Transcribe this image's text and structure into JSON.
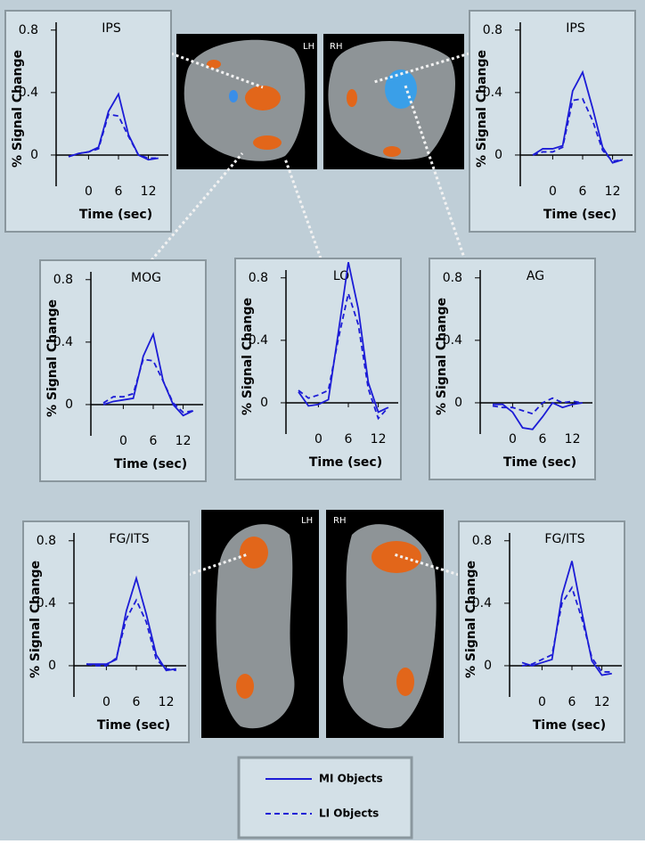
{
  "chart_data": [
    {
      "type": "line",
      "title": "IPS",
      "x_label": "Time (sec)",
      "y_label": "% Signal Change",
      "x": [
        -4,
        -2,
        0,
        2,
        4,
        6,
        8,
        10,
        12,
        14
      ],
      "xlim": [
        -6.5,
        16
      ],
      "xticks": [
        0,
        6,
        12
      ],
      "ylim": [
        -0.2,
        0.85
      ],
      "yticks": [
        0,
        0.4,
        0.8
      ],
      "series": [
        {
          "name": "MI Objects",
          "color": "#1c1cd6",
          "line_style": "solid",
          "values": [
            -0.01,
            0.01,
            0.02,
            0.05,
            0.28,
            0.39,
            0.13,
            0.0,
            -0.03,
            -0.02
          ]
        },
        {
          "name": "LI Objects",
          "color": "#1c1cd6",
          "line_style": "dashed",
          "values": [
            -0.01,
            0.01,
            0.02,
            0.04,
            0.26,
            0.25,
            0.12,
            0.0,
            -0.02,
            -0.02
          ]
        }
      ]
    },
    {
      "type": "line",
      "title": "IPS",
      "x_label": "Time (sec)",
      "y_label": "% Signal Change",
      "x": [
        -4,
        -2,
        0,
        2,
        4,
        6,
        8,
        10,
        12,
        14
      ],
      "xlim": [
        -6.5,
        16
      ],
      "xticks": [
        0,
        6,
        12
      ],
      "ylim": [
        -0.2,
        0.85
      ],
      "yticks": [
        0,
        0.4,
        0.8
      ],
      "series": [
        {
          "name": "MI Objects",
          "color": "#1c1cd6",
          "line_style": "solid",
          "values": [
            0.0,
            0.04,
            0.04,
            0.06,
            0.41,
            0.53,
            0.3,
            0.05,
            -0.05,
            -0.03
          ]
        },
        {
          "name": "LI Objects",
          "color": "#1c1cd6",
          "line_style": "dashed",
          "values": [
            0.0,
            0.02,
            0.02,
            0.05,
            0.35,
            0.36,
            0.22,
            0.03,
            -0.04,
            -0.03
          ]
        }
      ]
    },
    {
      "type": "line",
      "title": "MOG",
      "x_label": "Time (sec)",
      "y_label": "% Signal Change",
      "x": [
        -4,
        -2,
        0,
        2,
        4,
        6,
        8,
        10,
        12,
        14
      ],
      "xlim": [
        -6.5,
        16
      ],
      "xticks": [
        0,
        6,
        12
      ],
      "ylim": [
        -0.2,
        0.85
      ],
      "yticks": [
        0,
        0.4,
        0.8
      ],
      "series": [
        {
          "name": "MI Objects",
          "color": "#1c1cd6",
          "line_style": "solid",
          "values": [
            0.0,
            0.02,
            0.03,
            0.04,
            0.31,
            0.45,
            0.15,
            0.0,
            -0.07,
            -0.04
          ]
        },
        {
          "name": "LI Objects",
          "color": "#1c1cd6",
          "line_style": "dashed",
          "values": [
            0.01,
            0.05,
            0.05,
            0.07,
            0.29,
            0.28,
            0.15,
            0.01,
            -0.05,
            -0.04
          ]
        }
      ]
    },
    {
      "type": "line",
      "title": "LO",
      "x_label": "Time (sec)",
      "y_label": "% Signal Change",
      "x": [
        -4,
        -2,
        0,
        2,
        4,
        6,
        8,
        10,
        12,
        14
      ],
      "xlim": [
        -6.5,
        16
      ],
      "xticks": [
        0,
        6,
        12
      ],
      "ylim": [
        -0.2,
        0.85
      ],
      "yticks": [
        0,
        0.4,
        0.8
      ],
      "series": [
        {
          "name": "MI Objects",
          "color": "#1c1cd6",
          "line_style": "solid",
          "values": [
            0.07,
            -0.02,
            -0.01,
            0.02,
            0.45,
            0.9,
            0.6,
            0.13,
            -0.06,
            -0.03
          ]
        },
        {
          "name": "LI Objects",
          "color": "#1c1cd6",
          "line_style": "dashed",
          "values": [
            0.08,
            0.03,
            0.05,
            0.08,
            0.41,
            0.7,
            0.5,
            0.09,
            -0.1,
            -0.03
          ]
        }
      ]
    },
    {
      "type": "line",
      "title": "AG",
      "x_label": "Time (sec)",
      "y_label": "% Signal Change",
      "x": [
        -4,
        -2,
        0,
        2,
        4,
        6,
        8,
        10,
        12,
        14
      ],
      "xlim": [
        -6.5,
        16
      ],
      "xticks": [
        0,
        6,
        12
      ],
      "ylim": [
        -0.2,
        0.85
      ],
      "yticks": [
        0,
        0.4,
        0.8
      ],
      "series": [
        {
          "name": "MI Objects",
          "color": "#1c1cd6",
          "line_style": "solid",
          "values": [
            -0.01,
            -0.01,
            -0.06,
            -0.16,
            -0.17,
            -0.09,
            0.0,
            -0.03,
            -0.01,
            0.0
          ]
        },
        {
          "name": "LI Objects",
          "color": "#1c1cd6",
          "line_style": "dashed",
          "values": [
            -0.02,
            -0.03,
            -0.03,
            -0.05,
            -0.07,
            0.0,
            0.03,
            0.0,
            0.01,
            0.0
          ]
        }
      ]
    },
    {
      "type": "line",
      "title": "FG/ITS",
      "x_label": "Time (sec)",
      "y_label": "% Signal Change",
      "x": [
        -4,
        -2,
        0,
        2,
        4,
        6,
        8,
        10,
        12,
        14
      ],
      "xlim": [
        -6.5,
        16
      ],
      "xticks": [
        0,
        6,
        12
      ],
      "ylim": [
        -0.2,
        0.85
      ],
      "yticks": [
        0,
        0.4,
        0.8
      ],
      "series": [
        {
          "name": "MI Objects",
          "color": "#1c1cd6",
          "line_style": "solid",
          "values": [
            0.01,
            0.01,
            0.01,
            0.04,
            0.35,
            0.56,
            0.33,
            0.07,
            -0.03,
            -0.02
          ]
        },
        {
          "name": "LI Objects",
          "color": "#1c1cd6",
          "line_style": "dashed",
          "values": [
            0.01,
            0.0,
            0.0,
            0.05,
            0.3,
            0.42,
            0.28,
            0.04,
            -0.02,
            -0.03
          ]
        }
      ]
    },
    {
      "type": "line",
      "title": "FG/ITS",
      "x_label": "Time (sec)",
      "y_label": "% Signal Change",
      "x": [
        -4,
        -2,
        0,
        2,
        4,
        6,
        8,
        10,
        12,
        14
      ],
      "xlim": [
        -6.5,
        16
      ],
      "xticks": [
        0,
        6,
        12
      ],
      "ylim": [
        -0.2,
        0.85
      ],
      "yticks": [
        0,
        0.4,
        0.8
      ],
      "series": [
        {
          "name": "MI Objects",
          "color": "#1c1cd6",
          "line_style": "solid",
          "values": [
            0.02,
            0.0,
            0.02,
            0.04,
            0.45,
            0.67,
            0.34,
            0.03,
            -0.06,
            -0.05
          ]
        },
        {
          "name": "LI Objects",
          "color": "#1c1cd6",
          "line_style": "dashed",
          "values": [
            0.0,
            0.01,
            0.04,
            0.07,
            0.4,
            0.5,
            0.3,
            0.05,
            -0.04,
            -0.04
          ]
        }
      ]
    }
  ],
  "images": [
    {
      "left": "LH",
      "right": "RH"
    },
    {
      "left": "LH",
      "right": "RH"
    }
  ]
}
